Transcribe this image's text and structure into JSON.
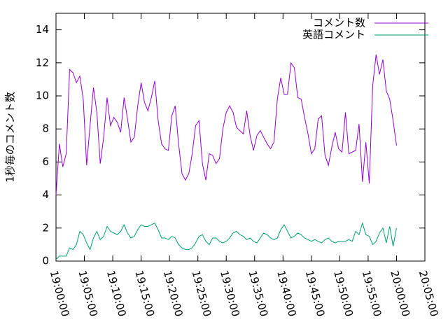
{
  "chart_data": {
    "type": "line",
    "ylabel": "1秒毎のコメント数",
    "x": [
      "19:00:00",
      "19:00:36",
      "19:01:12",
      "19:01:48",
      "19:02:24",
      "19:03:00",
      "19:03:36",
      "19:04:12",
      "19:04:48",
      "19:05:24",
      "19:06:00",
      "19:06:36",
      "19:07:12",
      "19:07:48",
      "19:08:24",
      "19:09:00",
      "19:09:36",
      "19:10:12",
      "19:10:48",
      "19:11:24",
      "19:12:00",
      "19:12:36",
      "19:13:12",
      "19:13:48",
      "19:14:24",
      "19:15:00",
      "19:15:36",
      "19:16:12",
      "19:16:48",
      "19:17:24",
      "19:18:00",
      "19:18:36",
      "19:19:12",
      "19:19:48",
      "19:20:24",
      "19:21:00",
      "19:21:36",
      "19:22:12",
      "19:22:48",
      "19:23:24",
      "19:24:00",
      "19:24:36",
      "19:25:12",
      "19:25:48",
      "19:26:24",
      "19:27:00",
      "19:27:36",
      "19:28:12",
      "19:28:48",
      "19:29:24",
      "19:30:00",
      "19:30:36",
      "19:31:12",
      "19:31:48",
      "19:32:24",
      "19:33:00",
      "19:33:36",
      "19:34:12",
      "19:34:48",
      "19:35:24",
      "19:36:00",
      "19:36:36",
      "19:37:12",
      "19:37:48",
      "19:38:24",
      "19:39:00",
      "19:39:36",
      "19:40:12",
      "19:40:48",
      "19:41:24",
      "19:42:00",
      "19:42:36",
      "19:43:12",
      "19:43:48",
      "19:44:24",
      "19:45:00",
      "19:45:36",
      "19:46:12",
      "19:46:48",
      "19:47:24",
      "19:48:00",
      "19:48:36",
      "19:49:12",
      "19:49:48",
      "19:50:24",
      "19:51:00",
      "19:51:36",
      "19:52:12",
      "19:52:48",
      "19:53:24",
      "19:54:00",
      "19:54:36",
      "19:55:12",
      "19:55:48",
      "19:56:24",
      "19:57:00",
      "19:57:36",
      "19:58:12",
      "19:58:48",
      "19:59:24",
      "20:00:00"
    ],
    "series": [
      {
        "name": "コメント数",
        "color": "#9400d3",
        "values": [
          4.0,
          7.1,
          5.7,
          6.5,
          11.6,
          11.4,
          10.8,
          11.2,
          9.8,
          5.8,
          8.2,
          10.5,
          9.0,
          5.9,
          7.5,
          9.9,
          8.2,
          8.7,
          8.4,
          7.8,
          9.9,
          8.6,
          7.2,
          7.5,
          9.4,
          10.8,
          9.6,
          9.1,
          9.9,
          10.9,
          8.5,
          7.1,
          6.8,
          6.7,
          8.8,
          9.4,
          7.1,
          5.3,
          4.9,
          5.3,
          6.5,
          8.2,
          8.5,
          5.9,
          4.9,
          6.5,
          6.4,
          5.9,
          6.2,
          8.0,
          9.0,
          9.4,
          9.0,
          8.1,
          7.9,
          7.7,
          9.1,
          7.6,
          6.7,
          7.6,
          7.9,
          7.5,
          7.1,
          6.8,
          7.2,
          9.8,
          11.1,
          10.1,
          10.1,
          12.0,
          11.7,
          9.9,
          9.8,
          8.7,
          7.7,
          6.5,
          6.8,
          8.6,
          8.8,
          6.4,
          5.8,
          6.9,
          7.8,
          6.8,
          6.6,
          9.0,
          6.5,
          6.6,
          6.7,
          8.3,
          4.8,
          7.2,
          4.7,
          10.6,
          12.5,
          11.3,
          12.2,
          10.3,
          9.8,
          8.5,
          7.0
        ]
      },
      {
        "name": "英語コメント",
        "color": "#009e73",
        "values": [
          0.1,
          0.3,
          0.3,
          0.3,
          0.8,
          0.7,
          1.0,
          1.8,
          1.6,
          1.1,
          0.7,
          1.4,
          1.8,
          1.3,
          1.5,
          2.1,
          1.8,
          1.7,
          1.6,
          1.8,
          2.2,
          1.7,
          1.4,
          1.5,
          1.9,
          2.2,
          2.1,
          2.1,
          2.2,
          2.3,
          1.9,
          1.4,
          1.4,
          1.3,
          1.5,
          1.4,
          1.0,
          0.8,
          0.7,
          0.7,
          0.8,
          1.1,
          1.5,
          1.6,
          1.2,
          1.0,
          1.4,
          1.4,
          1.2,
          1.1,
          1.2,
          1.4,
          1.7,
          1.8,
          1.6,
          1.5,
          1.3,
          1.4,
          1.2,
          1.1,
          1.4,
          1.7,
          1.6,
          1.4,
          1.3,
          1.4,
          1.9,
          2.2,
          1.8,
          1.4,
          1.5,
          1.7,
          1.6,
          1.4,
          1.3,
          1.2,
          1.3,
          1.2,
          1.1,
          1.3,
          1.4,
          1.2,
          1.1,
          1.2,
          1.2,
          1.2,
          1.3,
          1.2,
          1.8,
          1.6,
          2.3,
          1.6,
          1.5,
          1.0,
          1.2,
          1.7,
          2.0,
          1.1,
          2.1,
          0.9,
          2.0
        ]
      }
    ],
    "xlim": [
      "19:00:00",
      "20:05:00"
    ],
    "xticks": [
      "19:00:00",
      "19:05:00",
      "19:10:00",
      "19:15:00",
      "19:20:00",
      "19:25:00",
      "19:30:00",
      "19:35:00",
      "19:40:00",
      "19:45:00",
      "19:50:00",
      "19:55:00",
      "20:00:00",
      "20:05:00"
    ],
    "ylim": [
      0,
      15
    ],
    "yticks": [
      0,
      2,
      4,
      6,
      8,
      10,
      12,
      14
    ],
    "legend": "top-right"
  }
}
